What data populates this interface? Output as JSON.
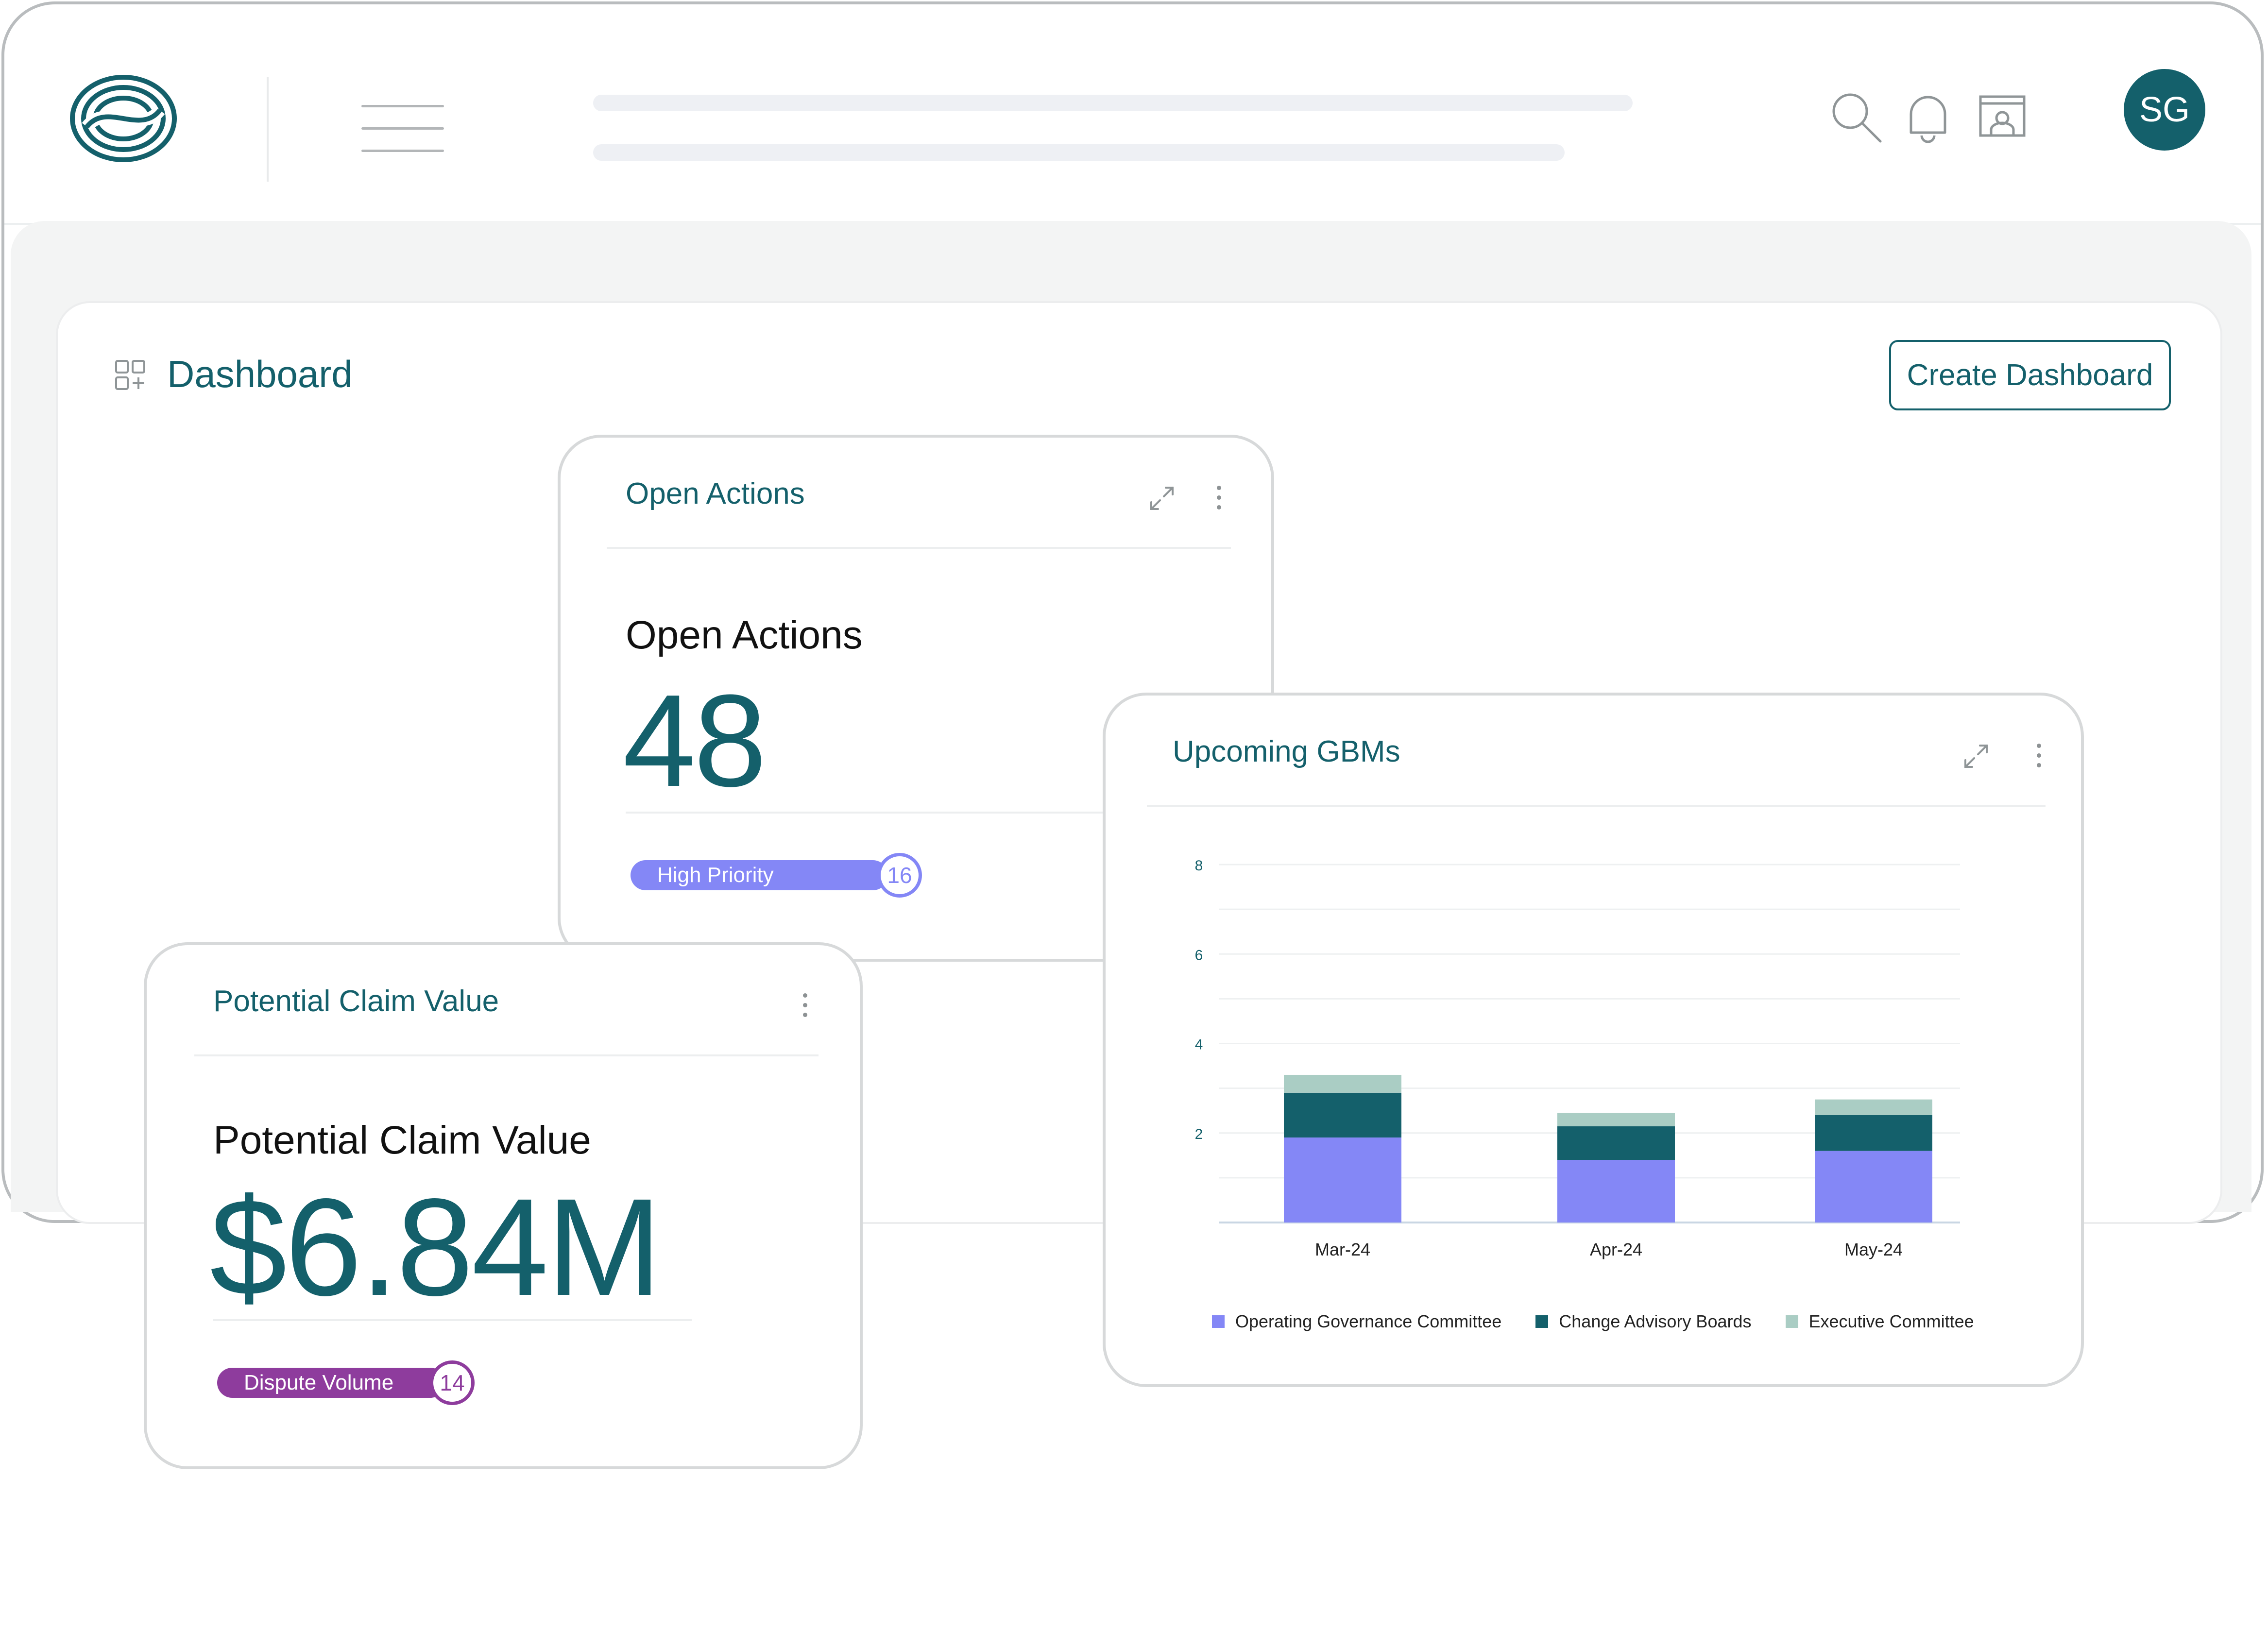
{
  "header": {
    "user_initials": "SG",
    "icons": [
      "search-icon",
      "bell-icon",
      "screen-share-icon"
    ]
  },
  "dashboard": {
    "title": "Dashboard",
    "create_button": "Create Dashboard"
  },
  "open_actions_card": {
    "title": "Open Actions",
    "kpi_label": "Open Actions",
    "kpi_value": "48",
    "badge_label": "High Priority",
    "badge_count": "16"
  },
  "claim_card": {
    "title": "Potential Claim Value",
    "kpi_label": "Potential Claim Value",
    "kpi_value": "$6.84M",
    "badge_label": "Dispute Volume",
    "badge_count": "14"
  },
  "gbm_card": {
    "title": "Upcoming GBMs"
  },
  "colors": {
    "brand": "#14606b",
    "high_priority": "#8487f6",
    "dispute": "#8e3c9d",
    "series_ogc": "#8487f6",
    "series_cab": "#14606b",
    "series_exec": "#aacdc4"
  },
  "chart_data": {
    "type": "bar",
    "stacked": true,
    "title": "Upcoming GBMs",
    "categories": [
      "Mar-24",
      "Apr-24",
      "May-24"
    ],
    "series": [
      {
        "name": "Operating Governance Committee",
        "values": [
          1.9,
          1.4,
          1.6
        ],
        "color": "#8487f6"
      },
      {
        "name": "Change Advisory Boards",
        "values": [
          1.0,
          0.75,
          0.8
        ],
        "color": "#14606b"
      },
      {
        "name": "Executive Committee",
        "values": [
          0.4,
          0.3,
          0.35
        ],
        "color": "#aacdc4"
      }
    ],
    "yticks": [
      "2",
      "4",
      "6",
      "8"
    ],
    "ylim": [
      0,
      8
    ],
    "grid": true,
    "legend_position": "bottom"
  }
}
